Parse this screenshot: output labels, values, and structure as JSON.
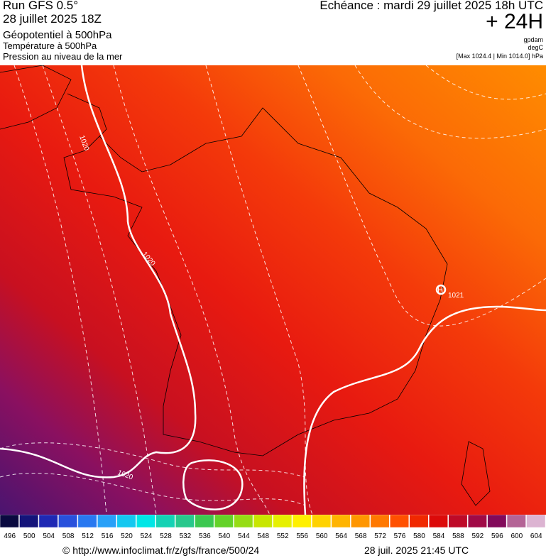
{
  "header": {
    "run": "Run GFS 0.5°",
    "run_date": "28 juillet 2025 18Z",
    "field_1": "Géopotentiel à 500hPa",
    "field_2": "Température à 500hPa",
    "field_3": "Pression au niveau de la mer",
    "valid": "Echéance : mardi 29 juillet 2025 18h UTC",
    "lead": "+ 24H",
    "unit_1": "gpdam",
    "unit_2": "degC",
    "extremes": "[Max 1024.4 | Min 1014.0] hPa"
  },
  "map": {
    "contour_labels": [
      "1020",
      "1020",
      "1020",
      "1021"
    ],
    "high_marker": "H"
  },
  "scale": {
    "values": [
      496,
      500,
      504,
      508,
      512,
      516,
      520,
      524,
      528,
      532,
      536,
      540,
      544,
      548,
      552,
      556,
      560,
      564,
      568,
      572,
      576,
      580,
      584,
      588,
      592,
      596,
      600,
      604
    ],
    "colors": [
      "#0a0a40",
      "#14147a",
      "#1e28b4",
      "#2850dc",
      "#2878f0",
      "#28a0f8",
      "#14c8f0",
      "#00e6e6",
      "#14d2b4",
      "#28c88c",
      "#3cc850",
      "#64d228",
      "#96dc14",
      "#c8e600",
      "#e6f000",
      "#fff000",
      "#ffd200",
      "#ffb400",
      "#ff9600",
      "#ff7800",
      "#ff5000",
      "#f02800",
      "#dc0a0a",
      "#be0a28",
      "#a00a46",
      "#820a5a",
      "#b46496",
      "#dcb4d2"
    ]
  },
  "footer": {
    "source": "© http://www.infoclimat.fr/z/gfs/france/500/24",
    "generated": "28 juil. 2025 21:45 UTC"
  }
}
